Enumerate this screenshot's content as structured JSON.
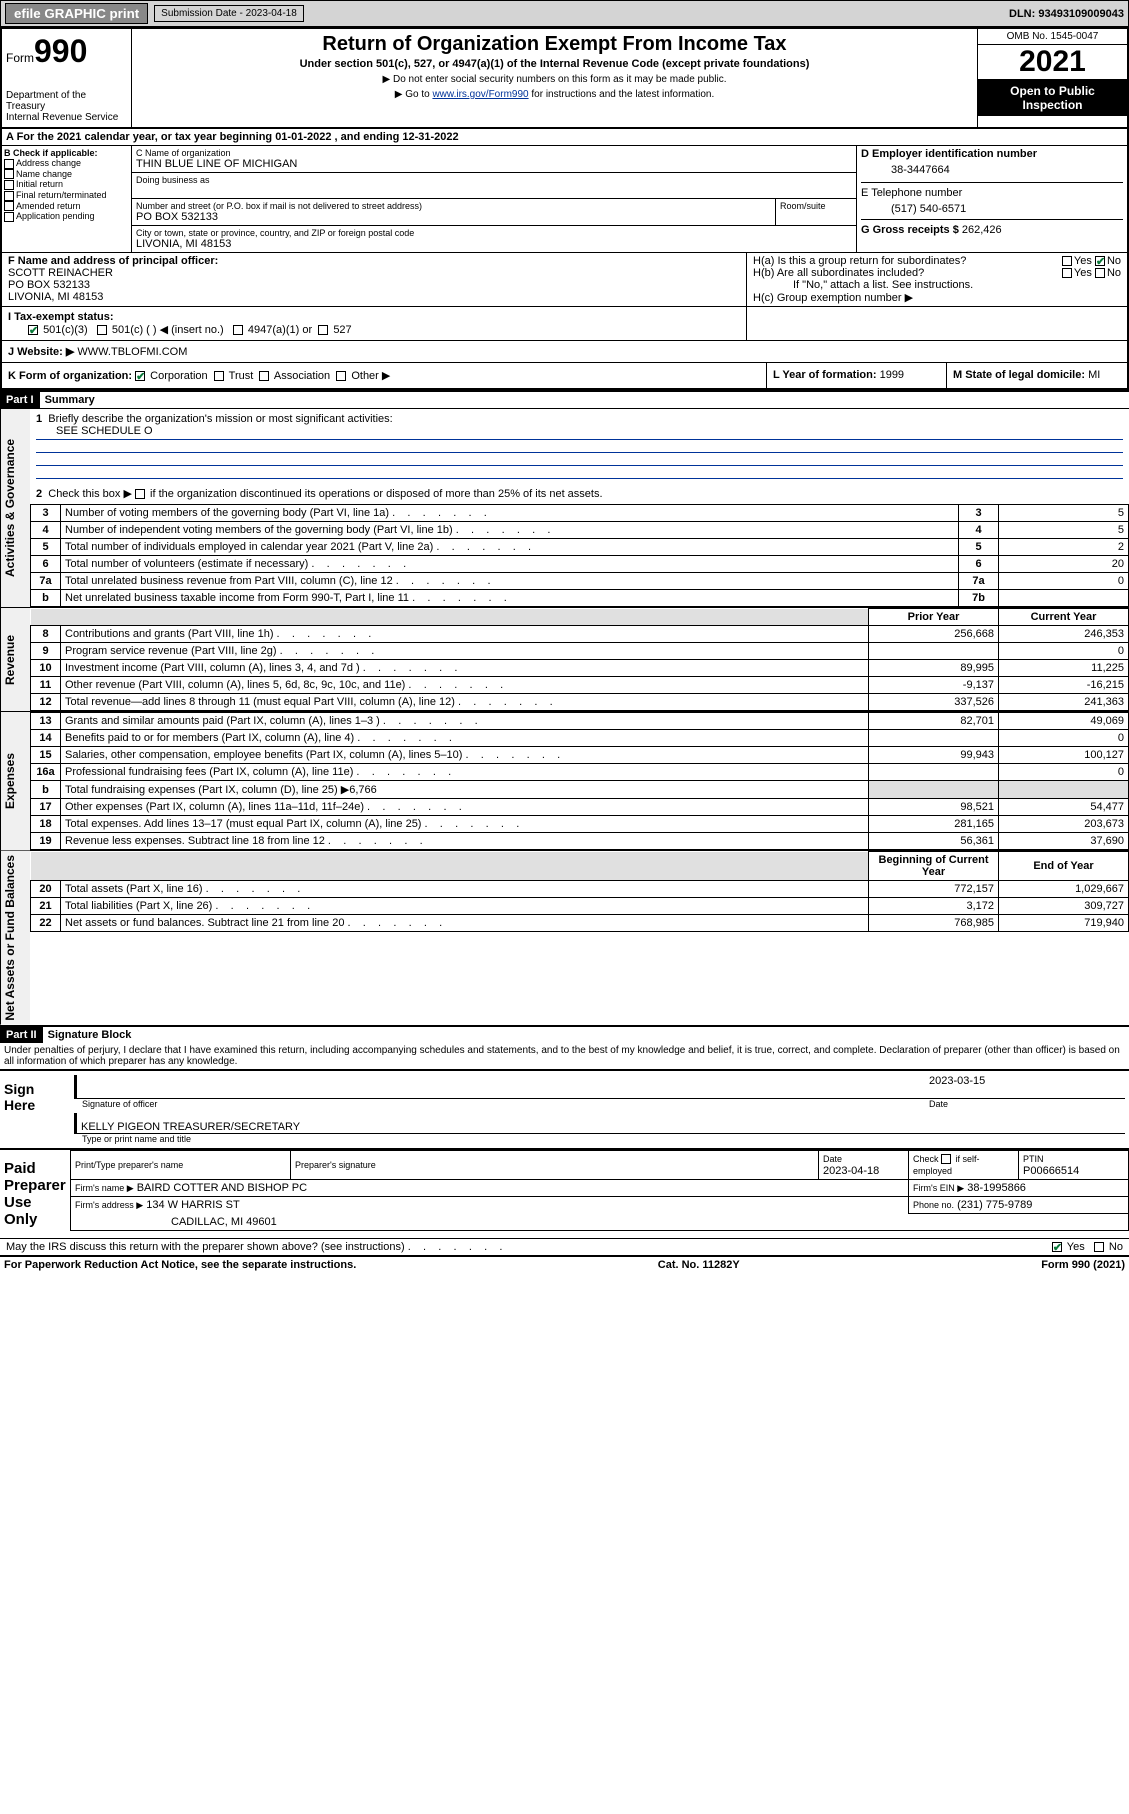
{
  "toolbar": {
    "print": "efile GRAPHIC print",
    "sub_label": "Submission Date - 2023-04-18",
    "dln": "DLN: 93493109009043"
  },
  "header": {
    "form_prefix": "Form",
    "form_no": "990",
    "dept": "Department of the Treasury\nInternal Revenue Service",
    "title": "Return of Organization Exempt From Income Tax",
    "subtitle": "Under section 501(c), 527, or 4947(a)(1) of the Internal Revenue Code (except private foundations)",
    "note1": "▶ Do not enter social security numbers on this form as it may be made public.",
    "note2_pre": "▶ Go to ",
    "note2_link": "www.irs.gov/Form990",
    "note2_post": " for instructions and the latest information.",
    "omb": "OMB No. 1545-0047",
    "year": "2021",
    "open_pub": "Open to Public Inspection"
  },
  "a": {
    "line": "A For the 2021 calendar year, or tax year beginning 01-01-2022    , and ending 12-31-2022"
  },
  "b": {
    "label": "B Check if applicable:",
    "opts": [
      "Address change",
      "Name change",
      "Initial return",
      "Final return/terminated",
      "Amended return",
      "Application pending"
    ]
  },
  "c": {
    "name_lbl": "C Name of organization",
    "name": "THIN BLUE LINE OF MICHIGAN",
    "dba_lbl": "Doing business as",
    "addr_lbl1": "Number and street (or P.O. box if mail is not delivered to street address)",
    "addr_lbl2": "Room/suite",
    "addr": "PO BOX 532133",
    "city_lbl": "City or town, state or province, country, and ZIP or foreign postal code",
    "city": "LIVONIA, MI  48153"
  },
  "d": {
    "lbl": "D Employer identification number",
    "val": "38-3447664"
  },
  "e": {
    "lbl": "E Telephone number",
    "val": "(517) 540-6571"
  },
  "g": {
    "lbl": "G Gross receipts $",
    "val": "262,426"
  },
  "f": {
    "lbl": "F Name and address of principal officer:",
    "name": "SCOTT REINACHER",
    "addr1": "PO BOX 532133",
    "addr2": "LIVONIA, MI  48153"
  },
  "h": {
    "a_lbl": "H(a)  Is this a group return for subordinates?",
    "b_lbl": "H(b)  Are all subordinates included?",
    "b_note": "If \"No,\" attach a list. See instructions.",
    "c_lbl": "H(c)  Group exemption number ▶"
  },
  "i": {
    "lbl": "I    Tax-exempt status:",
    "opts": [
      "501(c)(3)",
      "501(c) (  ) ◀ (insert no.)",
      "4947(a)(1) or",
      "527"
    ]
  },
  "j": {
    "lbl": "J    Website: ▶",
    "val": "WWW.TBLOFMI.COM"
  },
  "k": {
    "lbl": "K Form of organization:",
    "opts": [
      "Corporation",
      "Trust",
      "Association",
      "Other ▶"
    ]
  },
  "l": {
    "lbl": "L Year of formation:",
    "val": "1999"
  },
  "m": {
    "lbl": "M State of legal domicile:",
    "val": "MI"
  },
  "part1": {
    "hdr": "Part I",
    "title": "Summary",
    "line1": "Briefly describe the organization's mission or most significant activities:",
    "line1_val": "SEE SCHEDULE O",
    "line2_pre": "Check this box ▶",
    "line2_post": " if the organization discontinued its operations or disposed of more than 25% of its net assets.",
    "gov": "Activities & Governance",
    "rev": "Revenue",
    "exp": "Expenses",
    "net": "Net Assets or Fund Balances",
    "prior_hdr": "Prior Year",
    "curr_hdr": "Current Year",
    "boy_hdr": "Beginning of Current Year",
    "eoy_hdr": "End of Year",
    "rows_gov": [
      {
        "n": "3",
        "t": "Number of voting members of the governing body (Part VI, line 1a)",
        "r": "3",
        "v": "5"
      },
      {
        "n": "4",
        "t": "Number of independent voting members of the governing body (Part VI, line 1b)",
        "r": "4",
        "v": "5"
      },
      {
        "n": "5",
        "t": "Total number of individuals employed in calendar year 2021 (Part V, line 2a)",
        "r": "5",
        "v": "2"
      },
      {
        "n": "6",
        "t": "Total number of volunteers (estimate if necessary)",
        "r": "6",
        "v": "20"
      },
      {
        "n": "7a",
        "t": "Total unrelated business revenue from Part VIII, column (C), line 12",
        "r": "7a",
        "v": "0"
      },
      {
        "n": "b",
        "t": "Net unrelated business taxable income from Form 990-T, Part I, line 11",
        "r": "7b",
        "v": ""
      }
    ],
    "rows_rev": [
      {
        "n": "8",
        "t": "Contributions and grants (Part VIII, line 1h)",
        "p": "256,668",
        "c": "246,353"
      },
      {
        "n": "9",
        "t": "Program service revenue (Part VIII, line 2g)",
        "p": "",
        "c": "0"
      },
      {
        "n": "10",
        "t": "Investment income (Part VIII, column (A), lines 3, 4, and 7d )",
        "p": "89,995",
        "c": "11,225"
      },
      {
        "n": "11",
        "t": "Other revenue (Part VIII, column (A), lines 5, 6d, 8c, 9c, 10c, and 11e)",
        "p": "-9,137",
        "c": "-16,215"
      },
      {
        "n": "12",
        "t": "Total revenue—add lines 8 through 11 (must equal Part VIII, column (A), line 12)",
        "p": "337,526",
        "c": "241,363"
      }
    ],
    "rows_exp": [
      {
        "n": "13",
        "t": "Grants and similar amounts paid (Part IX, column (A), lines 1–3 )",
        "p": "82,701",
        "c": "49,069"
      },
      {
        "n": "14",
        "t": "Benefits paid to or for members (Part IX, column (A), line 4)",
        "p": "",
        "c": "0"
      },
      {
        "n": "15",
        "t": "Salaries, other compensation, employee benefits (Part IX, column (A), lines 5–10)",
        "p": "99,943",
        "c": "100,127"
      },
      {
        "n": "16a",
        "t": "Professional fundraising fees (Part IX, column (A), line 11e)",
        "p": "",
        "c": "0"
      },
      {
        "n": "b",
        "t": "Total fundraising expenses (Part IX, column (D), line 25) ▶6,766",
        "p": "—",
        "c": "—"
      },
      {
        "n": "17",
        "t": "Other expenses (Part IX, column (A), lines 11a–11d, 11f–24e)",
        "p": "98,521",
        "c": "54,477"
      },
      {
        "n": "18",
        "t": "Total expenses. Add lines 13–17 (must equal Part IX, column (A), line 25)",
        "p": "281,165",
        "c": "203,673"
      },
      {
        "n": "19",
        "t": "Revenue less expenses. Subtract line 18 from line 12",
        "p": "56,361",
        "c": "37,690"
      }
    ],
    "rows_net": [
      {
        "n": "20",
        "t": "Total assets (Part X, line 16)",
        "p": "772,157",
        "c": "1,029,667"
      },
      {
        "n": "21",
        "t": "Total liabilities (Part X, line 26)",
        "p": "3,172",
        "c": "309,727"
      },
      {
        "n": "22",
        "t": "Net assets or fund balances. Subtract line 21 from line 20",
        "p": "768,985",
        "c": "719,940"
      }
    ]
  },
  "part2": {
    "hdr": "Part II",
    "title": "Signature Block",
    "decl": "Under penalties of perjury, I declare that I have examined this return, including accompanying schedules and statements, and to the best of my knowledge and belief, it is true, correct, and complete. Declaration of preparer (other than officer) is based on all information of which preparer has any knowledge.",
    "sign_here": "Sign Here",
    "paid_prep": "Paid Preparer Use Only",
    "sig_officer_lbl": "Signature of officer",
    "sig_date": "2023-03-15",
    "date_lbl": "Date",
    "officer_name": "KELLY PIGEON  TREASURER/SECRETARY",
    "officer_name_lbl": "Type or print name and title",
    "prep_name_lbl": "Print/Type preparer's name",
    "prep_sig_lbl": "Preparer's signature",
    "prep_date": "2023-04-18",
    "check_self": "Check          if self-employed",
    "ptin_lbl": "PTIN",
    "ptin": "P00666514",
    "firm_name_lbl": "Firm's name    ▶",
    "firm_name": "BAIRD COTTER AND BISHOP PC",
    "firm_ein_lbl": "Firm's EIN ▶",
    "firm_ein": "38-1995866",
    "firm_addr_lbl": "Firm's address ▶",
    "firm_addr1": "134 W HARRIS ST",
    "firm_addr2": "CADILLAC, MI  49601",
    "phone_lbl": "Phone no.",
    "phone": "(231) 775-9789",
    "discuss": "May the IRS discuss this return with the preparer shown above? (see instructions)"
  },
  "footer": {
    "left": "For Paperwork Reduction Act Notice, see the separate instructions.",
    "mid": "Cat. No. 11282Y",
    "right": "Form 990 (2021)"
  },
  "colors": {
    "bg": "#ffffff",
    "toolbar_bg": "#d4d4d4",
    "btn_bg": "#888888",
    "black": "#000000",
    "check_green": "#0a7a3a",
    "link_blue": "#003399",
    "grey_box": "#e0e0e0"
  }
}
